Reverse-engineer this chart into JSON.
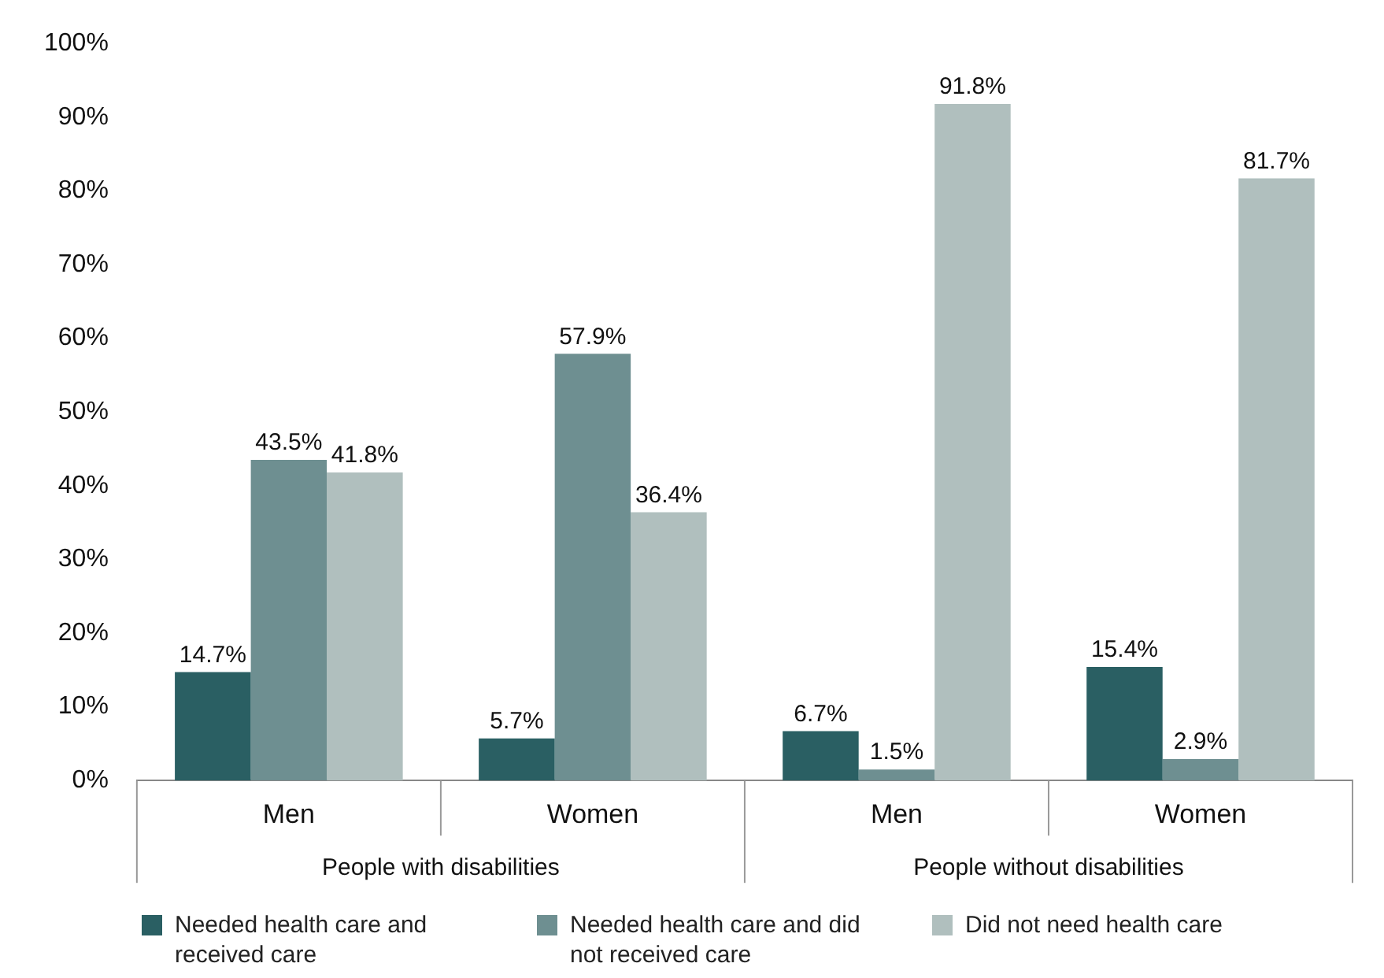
{
  "chart_data": {
    "type": "bar",
    "categories": [
      "Men",
      "Women",
      "Men",
      "Women"
    ],
    "annotations": [
      "People with disabilities",
      "People without disabilities"
    ],
    "series": [
      {
        "name": "Needed health care and received care",
        "color": "#2a5f63",
        "values": [
          14.7,
          5.7,
          6.7,
          15.4
        ],
        "value_labels": [
          "14.7%",
          "5.7%",
          "6.7%",
          "15.4%"
        ]
      },
      {
        "name": "Needed health care and did not received care",
        "color": "#6e8f91",
        "values": [
          43.5,
          57.9,
          1.5,
          2.9
        ],
        "value_labels": [
          "43.5%",
          "57.9%",
          "1.5%",
          "2.9%"
        ]
      },
      {
        "name": "Did not need health care",
        "color": "#b0bfbe",
        "values": [
          41.8,
          36.4,
          91.8,
          81.7
        ],
        "value_labels": [
          "41.8%",
          "36.4%",
          "91.8%",
          "81.7%"
        ]
      }
    ],
    "ylim": [
      0,
      100
    ],
    "yticks": [
      {
        "value": 0,
        "label": "0%"
      },
      {
        "value": 10,
        "label": "10%"
      },
      {
        "value": 20,
        "label": "20%"
      },
      {
        "value": 30,
        "label": "30%"
      },
      {
        "value": 40,
        "label": "40%"
      },
      {
        "value": 50,
        "label": "50%"
      },
      {
        "value": 60,
        "label": "60%"
      },
      {
        "value": 70,
        "label": "70%"
      },
      {
        "value": 80,
        "label": "80%"
      },
      {
        "value": 90,
        "label": "90%"
      },
      {
        "value": 100,
        "label": "100%"
      }
    ],
    "grid": false,
    "legend": "bottom"
  }
}
